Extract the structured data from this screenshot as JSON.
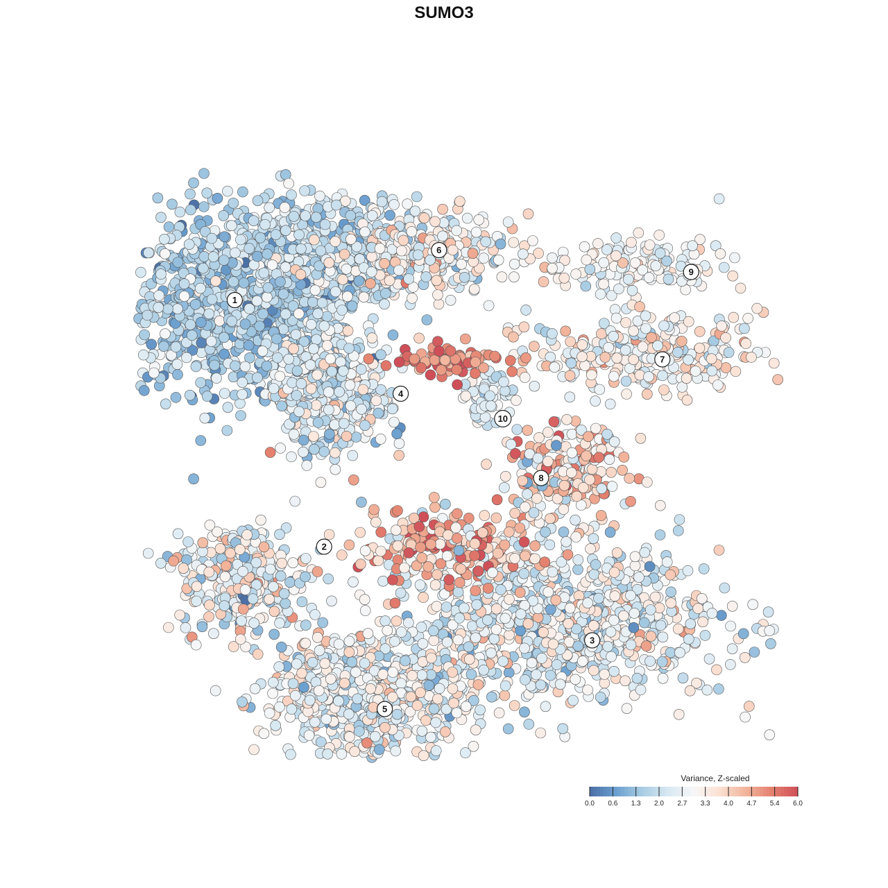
{
  "chart_data": {
    "type": "scatter",
    "title": "SUMO3",
    "xlabel": "",
    "ylabel": "",
    "xlim": [
      0,
      100
    ],
    "ylim": [
      0,
      100
    ],
    "grid": false,
    "legend": {
      "title": "Variance, Z-scaled",
      "placement": "bottom-right",
      "ticks": [
        "0.0",
        "0.6",
        "1.3",
        "2.0",
        "2.7",
        "3.3",
        "4.0",
        "4.7",
        "5.4",
        "6.0"
      ],
      "range": [
        0,
        6
      ],
      "colors": [
        "#4a6fa5",
        "#6b9fcf",
        "#a8cce3",
        "#d7e8f2",
        "#f7f7f7",
        "#fbe0d2",
        "#f2b49b",
        "#e4816f",
        "#cf4f59"
      ]
    },
    "clusters": [
      {
        "label": "1",
        "x": 13.5,
        "y": 72.0,
        "sx": 9.5,
        "sy": 7.0,
        "n": 900,
        "mean": 1.6,
        "sd": 0.6
      },
      {
        "label": "1",
        "x": 27.0,
        "y": 80.0,
        "sx": 8.0,
        "sy": 4.5,
        "n": 500,
        "mean": 2.0,
        "sd": 0.6
      },
      {
        "label": "4",
        "x": 29.5,
        "y": 58.0,
        "sx": 4.5,
        "sy": 5.0,
        "n": 420,
        "mean": 2.4,
        "sd": 0.8
      },
      {
        "label": "6",
        "x": 44.0,
        "y": 80.0,
        "sx": 7.0,
        "sy": 3.0,
        "n": 300,
        "mean": 3.0,
        "sd": 0.8
      },
      {
        "label": "9",
        "x": 77.0,
        "y": 78.0,
        "sx": 7.0,
        "sy": 2.5,
        "n": 160,
        "mean": 2.9,
        "sd": 0.5
      },
      {
        "label": "7",
        "x": 79.0,
        "y": 64.0,
        "sx": 9.0,
        "sy": 3.0,
        "n": 260,
        "mean": 3.1,
        "sd": 0.8
      },
      {
        "label": "10",
        "x": 54.0,
        "y": 57.0,
        "sx": 2.0,
        "sy": 3.0,
        "n": 60,
        "mean": 2.5,
        "sd": 0.4
      },
      {
        "label": "8",
        "x": 66.0,
        "y": 45.0,
        "sx": 5.0,
        "sy": 4.0,
        "n": 220,
        "mean": 3.5,
        "sd": 1.1
      },
      {
        "label": "2",
        "x": 16.0,
        "y": 28.0,
        "sx": 5.0,
        "sy": 4.5,
        "n": 300,
        "mean": 2.8,
        "sd": 1.0
      },
      {
        "label": "3",
        "x": 65.0,
        "y": 21.0,
        "sx": 13.0,
        "sy": 6.0,
        "n": 900,
        "mean": 2.7,
        "sd": 0.8
      },
      {
        "label": "5",
        "x": 35.0,
        "y": 9.0,
        "sx": 8.0,
        "sy": 5.0,
        "n": 650,
        "mean": 2.8,
        "sd": 0.8
      },
      {
        "label": "",
        "x": 49.0,
        "y": 63.0,
        "sx": 5.0,
        "sy": 1.2,
        "n": 80,
        "mean": 5.2,
        "sd": 0.6
      },
      {
        "label": "",
        "x": 47.0,
        "y": 33.0,
        "sx": 7.0,
        "sy": 3.0,
        "n": 200,
        "mean": 4.4,
        "sd": 1.1
      }
    ],
    "cluster_labels": [
      {
        "label": "1",
        "x": 14.5,
        "y": 72.5
      },
      {
        "label": "2",
        "x": 28.5,
        "y": 33.0
      },
      {
        "label": "3",
        "x": 70.5,
        "y": 18.0
      },
      {
        "label": "4",
        "x": 40.5,
        "y": 57.5
      },
      {
        "label": "5",
        "x": 38.0,
        "y": 7.0
      },
      {
        "label": "6",
        "x": 46.5,
        "y": 80.5
      },
      {
        "label": "7",
        "x": 81.5,
        "y": 63.0
      },
      {
        "label": "8",
        "x": 62.5,
        "y": 44.0
      },
      {
        "label": "9",
        "x": 86.0,
        "y": 77.0
      },
      {
        "label": "10",
        "x": 56.5,
        "y": 53.5
      }
    ]
  }
}
